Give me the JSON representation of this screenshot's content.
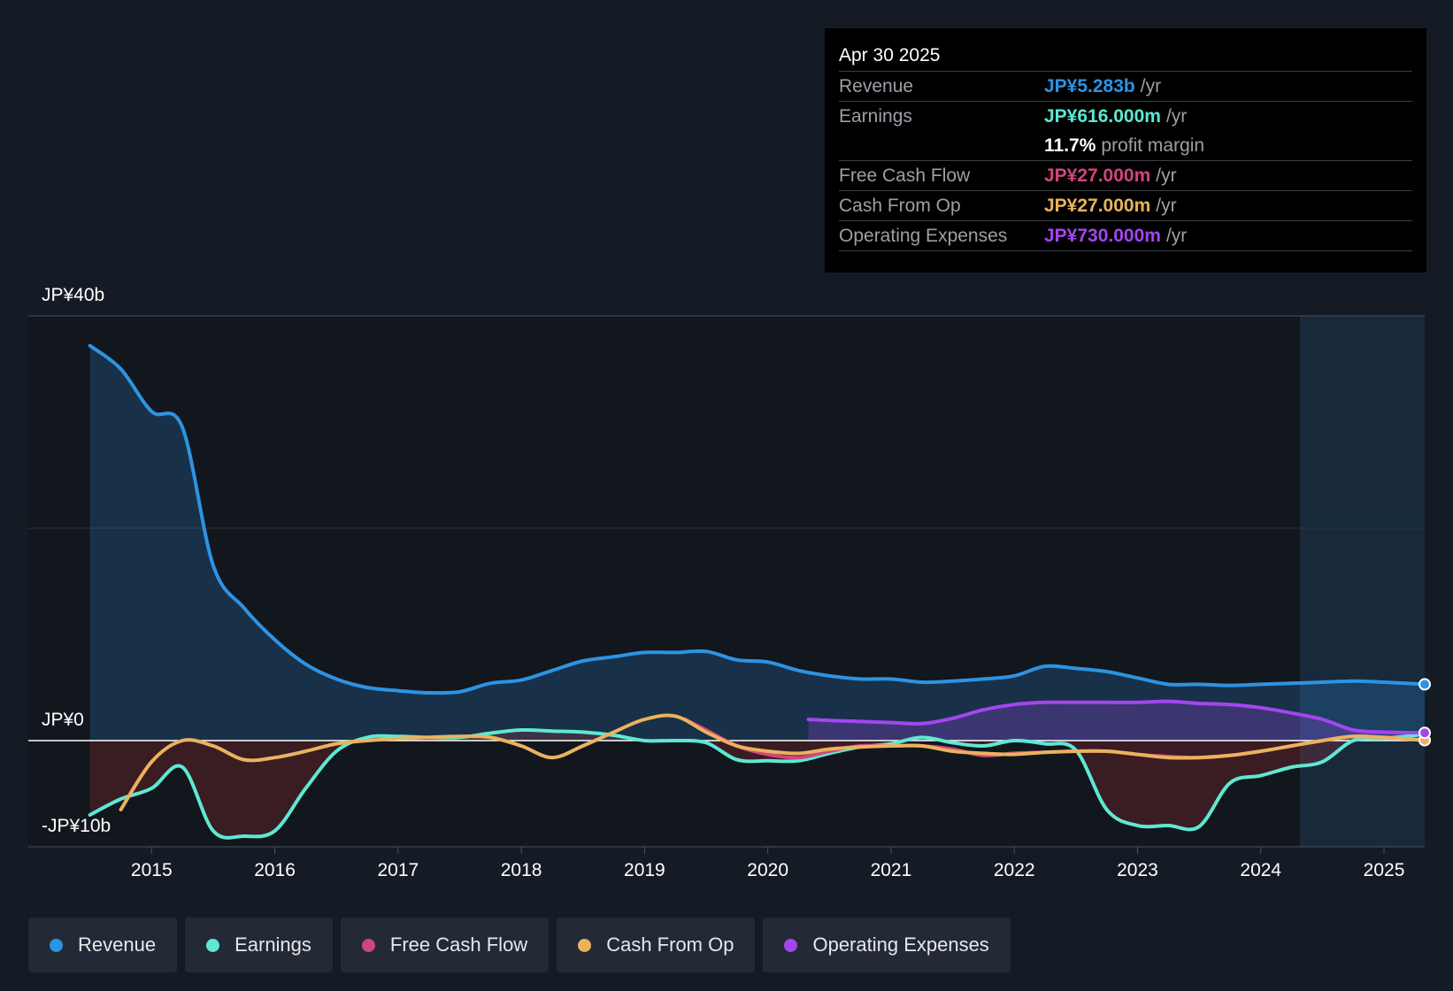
{
  "tooltip": {
    "date": "Apr 30 2025",
    "rows": [
      {
        "label": "Revenue",
        "value": "JP¥5.283b",
        "unit": "/yr",
        "color": "#2d93e3"
      },
      {
        "label": "Earnings",
        "value": "JP¥616.000m",
        "unit": "/yr",
        "color": "#5ee8d3"
      },
      {
        "label": "",
        "value": "11.7%",
        "unit": "profit margin",
        "color": "#ffffff"
      },
      {
        "label": "Free Cash Flow",
        "value": "JP¥27.000m",
        "unit": "/yr",
        "color": "#d1457e"
      },
      {
        "label": "Cash From Op",
        "value": "JP¥27.000m",
        "unit": "/yr",
        "color": "#ebb25e"
      },
      {
        "label": "Operating Expenses",
        "value": "JP¥730.000m",
        "unit": "/yr",
        "color": "#a346f0"
      }
    ]
  },
  "legend": [
    {
      "label": "Revenue",
      "color": "#2d93e3"
    },
    {
      "label": "Earnings",
      "color": "#5ee8d3"
    },
    {
      "label": "Free Cash Flow",
      "color": "#d1457e"
    },
    {
      "label": "Cash From Op",
      "color": "#ebb25e"
    },
    {
      "label": "Operating Expenses",
      "color": "#a346f0"
    }
  ],
  "chart_data": {
    "type": "line",
    "title": "",
    "xlabel": "",
    "ylabel": "",
    "y_axis_labels": [
      "JP¥40b",
      "JP¥0",
      "-JP¥10b"
    ],
    "x_ticks": [
      "2015",
      "2016",
      "2017",
      "2018",
      "2019",
      "2020",
      "2021",
      "2022",
      "2023",
      "2024",
      "2025"
    ],
    "xlim": [
      2014.0,
      2025.33
    ],
    "ylim": [
      -10,
      40
    ],
    "forecast_start": 2024.33,
    "series": [
      {
        "name": "Revenue",
        "color": "#2d93e3",
        "x": [
          2014.5,
          2014.75,
          2015.0,
          2015.25,
          2015.5,
          2015.75,
          2016.0,
          2016.25,
          2016.5,
          2016.75,
          2017.0,
          2017.25,
          2017.5,
          2017.75,
          2018.0,
          2018.25,
          2018.5,
          2018.75,
          2019.0,
          2019.25,
          2019.5,
          2019.75,
          2020.0,
          2020.25,
          2020.5,
          2020.75,
          2021.0,
          2021.25,
          2021.5,
          2021.75,
          2022.0,
          2022.25,
          2022.5,
          2022.75,
          2023.0,
          2023.25,
          2023.5,
          2023.75,
          2024.0,
          2024.25,
          2024.5,
          2024.75,
          2025.0,
          2025.33
        ],
        "y": [
          37.2,
          35.0,
          31.0,
          29.5,
          16.5,
          12.5,
          9.5,
          7.2,
          5.8,
          5.0,
          4.7,
          4.5,
          4.6,
          5.4,
          5.7,
          6.6,
          7.5,
          7.9,
          8.3,
          8.3,
          8.4,
          7.6,
          7.4,
          6.6,
          6.1,
          5.8,
          5.8,
          5.5,
          5.6,
          5.8,
          6.1,
          7.0,
          6.8,
          6.5,
          5.9,
          5.3,
          5.3,
          5.2,
          5.3,
          5.4,
          5.5,
          5.6,
          5.5,
          5.3
        ]
      },
      {
        "name": "Earnings",
        "color": "#5ee8d3",
        "x": [
          2014.5,
          2014.75,
          2015.0,
          2015.25,
          2015.5,
          2015.75,
          2016.0,
          2016.25,
          2016.5,
          2016.75,
          2017.0,
          2017.25,
          2017.5,
          2017.75,
          2018.0,
          2018.25,
          2018.5,
          2018.75,
          2019.0,
          2019.25,
          2019.5,
          2019.75,
          2020.0,
          2020.25,
          2020.5,
          2020.75,
          2021.0,
          2021.25,
          2021.5,
          2021.75,
          2022.0,
          2022.25,
          2022.5,
          2022.75,
          2023.0,
          2023.25,
          2023.5,
          2023.75,
          2024.0,
          2024.25,
          2024.5,
          2024.75,
          2025.0,
          2025.33
        ],
        "y": [
          -7.0,
          -5.5,
          -4.5,
          -2.5,
          -8.5,
          -9.0,
          -8.5,
          -4.5,
          -1.0,
          0.3,
          0.4,
          0.3,
          0.3,
          0.7,
          1.0,
          0.9,
          0.8,
          0.5,
          0.0,
          0.0,
          -0.2,
          -1.8,
          -1.9,
          -1.9,
          -1.2,
          -0.6,
          -0.3,
          0.3,
          -0.2,
          -0.5,
          0.0,
          -0.3,
          -0.9,
          -6.5,
          -8.0,
          -8.0,
          -8.1,
          -4.0,
          -3.3,
          -2.5,
          -2.0,
          0.0,
          0.2,
          0.6
        ]
      },
      {
        "name": "Free Cash Flow",
        "color": "#d1457e",
        "x": [
          2019.33,
          2019.5,
          2019.75,
          2020.0,
          2020.25,
          2020.5,
          2020.75,
          2021.0,
          2021.25,
          2021.5,
          2021.75,
          2022.0,
          2022.25,
          2022.5,
          2022.75,
          2023.0,
          2023.25,
          2023.5,
          2023.75,
          2024.0,
          2024.25,
          2024.5,
          2024.75,
          2025.0,
          2025.33
        ],
        "y": [
          2.0,
          1.0,
          -0.5,
          -1.3,
          -1.6,
          -1.0,
          -0.5,
          -0.5,
          -0.5,
          -0.8,
          -1.4,
          -1.2,
          -1.1,
          -1.0,
          -1.0,
          -1.3,
          -1.5,
          -1.6,
          -1.4,
          -1.0,
          -0.5,
          0.0,
          0.4,
          0.3,
          0.03
        ]
      },
      {
        "name": "Cash From Op",
        "color": "#ebb25e",
        "x": [
          2014.75,
          2015.0,
          2015.25,
          2015.5,
          2015.75,
          2016.0,
          2016.25,
          2016.5,
          2016.75,
          2017.0,
          2017.25,
          2017.5,
          2017.75,
          2018.0,
          2018.25,
          2018.5,
          2018.75,
          2019.0,
          2019.25,
          2019.5,
          2019.75,
          2020.0,
          2020.25,
          2020.5,
          2020.75,
          2021.0,
          2021.25,
          2021.5,
          2021.75,
          2022.0,
          2022.25,
          2022.5,
          2022.75,
          2023.0,
          2023.25,
          2023.5,
          2023.75,
          2024.0,
          2024.25,
          2024.5,
          2024.75,
          2025.0,
          2025.33
        ],
        "y": [
          -6.5,
          -2.0,
          0.0,
          -0.5,
          -1.8,
          -1.6,
          -1.0,
          -0.3,
          0.0,
          0.2,
          0.3,
          0.4,
          0.3,
          -0.5,
          -1.6,
          -0.5,
          0.8,
          2.0,
          2.3,
          0.8,
          -0.5,
          -1.0,
          -1.2,
          -0.8,
          -0.6,
          -0.5,
          -0.5,
          -1.0,
          -1.2,
          -1.3,
          -1.1,
          -1.0,
          -1.0,
          -1.3,
          -1.6,
          -1.6,
          -1.4,
          -1.0,
          -0.5,
          0.0,
          0.4,
          0.3,
          0.03
        ]
      },
      {
        "name": "Operating Expenses",
        "color": "#a346f0",
        "x": [
          2020.33,
          2020.5,
          2020.75,
          2021.0,
          2021.25,
          2021.5,
          2021.75,
          2022.0,
          2022.25,
          2022.5,
          2022.75,
          2023.0,
          2023.25,
          2023.5,
          2023.75,
          2024.0,
          2024.25,
          2024.5,
          2024.75,
          2025.0,
          2025.33
        ],
        "y": [
          2.0,
          1.9,
          1.8,
          1.7,
          1.6,
          2.1,
          2.9,
          3.4,
          3.6,
          3.6,
          3.6,
          3.6,
          3.7,
          3.5,
          3.4,
          3.1,
          2.6,
          2.0,
          1.0,
          0.8,
          0.73
        ]
      }
    ]
  }
}
